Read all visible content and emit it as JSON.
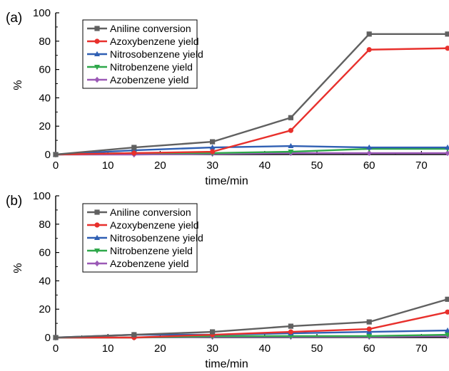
{
  "chart_data": [
    {
      "type": "line",
      "panel_label": "(a)",
      "xlabel": "time/min",
      "ylabel": "%",
      "xlim": [
        0,
        75
      ],
      "ylim": [
        0,
        100
      ],
      "x_ticks": [
        "0",
        "10",
        "20",
        "30",
        "40",
        "50",
        "60",
        "70"
      ],
      "y_ticks": [
        "0",
        "20",
        "40",
        "60",
        "80",
        "100"
      ],
      "grid": false,
      "legend_position": "top-left",
      "x": [
        0,
        15,
        30,
        45,
        60,
        75
      ],
      "series": [
        {
          "name": "Aniline conversion",
          "color": "#606060",
          "marker": "square",
          "values": [
            0,
            5,
            9,
            26,
            85,
            85
          ]
        },
        {
          "name": "Azoxybenzene yield",
          "color": "#e8302c",
          "marker": "circle",
          "values": [
            0,
            1,
            2,
            17,
            74,
            75
          ]
        },
        {
          "name": "Nitrosobenzene yield",
          "color": "#2f5fb3",
          "marker": "triangle-up",
          "values": [
            0,
            3,
            5,
            6,
            5,
            5
          ]
        },
        {
          "name": "Nitrobenzene yield",
          "color": "#2ea84a",
          "marker": "triangle-down",
          "values": [
            0,
            1,
            1,
            2,
            4,
            4
          ]
        },
        {
          "name": "Azobenzene yield",
          "color": "#9b59b6",
          "marker": "diamond",
          "values": [
            0,
            0,
            0.5,
            1,
            1,
            1
          ]
        }
      ]
    },
    {
      "type": "line",
      "panel_label": "(b)",
      "xlabel": "time/min",
      "ylabel": "%",
      "xlim": [
        0,
        75
      ],
      "ylim": [
        0,
        100
      ],
      "x_ticks": [
        "0",
        "10",
        "20",
        "30",
        "40",
        "50",
        "60",
        "70"
      ],
      "y_ticks": [
        "0",
        "20",
        "40",
        "60",
        "80",
        "100"
      ],
      "grid": false,
      "legend_position": "top-left",
      "x": [
        0,
        15,
        30,
        45,
        60,
        75
      ],
      "series": [
        {
          "name": "Aniline conversion",
          "color": "#606060",
          "marker": "square",
          "values": [
            0,
            2,
            4,
            8,
            11,
            27
          ]
        },
        {
          "name": "Azoxybenzene yield",
          "color": "#e8302c",
          "marker": "circle",
          "values": [
            0,
            0,
            2,
            4,
            6,
            18
          ]
        },
        {
          "name": "Nitrosobenzene yield",
          "color": "#2f5fb3",
          "marker": "triangle-up",
          "values": [
            0,
            2,
            2,
            3,
            4,
            5
          ]
        },
        {
          "name": "Nitrobenzene yield",
          "color": "#2ea84a",
          "marker": "triangle-down",
          "values": [
            0,
            0,
            1,
            1,
            1,
            2
          ]
        },
        {
          "name": "Azobenzene yield",
          "color": "#9b59b6",
          "marker": "diamond",
          "values": [
            0,
            0,
            0.5,
            0.5,
            0.5,
            1
          ]
        }
      ]
    }
  ]
}
